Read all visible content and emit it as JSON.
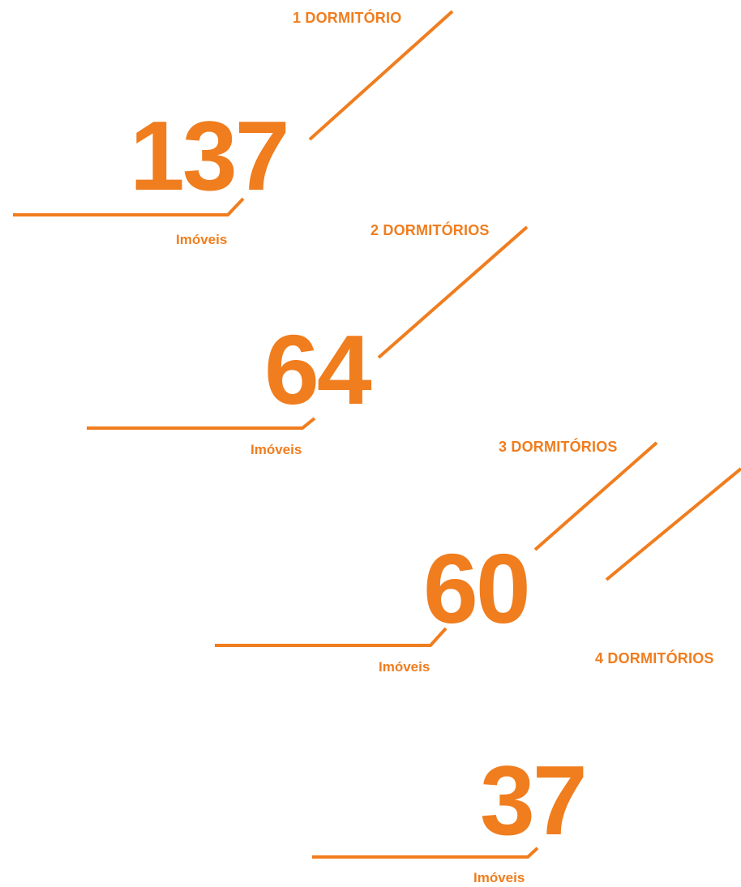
{
  "accent_color": "#f07d1e",
  "unit_label": "Imóveis",
  "stats": [
    {
      "category": "1 DORMITÓRIO",
      "count": "137",
      "unit": "Imóveis"
    },
    {
      "category": "2 DORMITÓRIOS",
      "count": "64",
      "unit": "Imóveis"
    },
    {
      "category": "3 DORMITÓRIOS",
      "count": "60",
      "unit": "Imóveis"
    },
    {
      "category": "4 DORMITÓRIOS",
      "count": "37",
      "unit": "Imóveis"
    }
  ]
}
